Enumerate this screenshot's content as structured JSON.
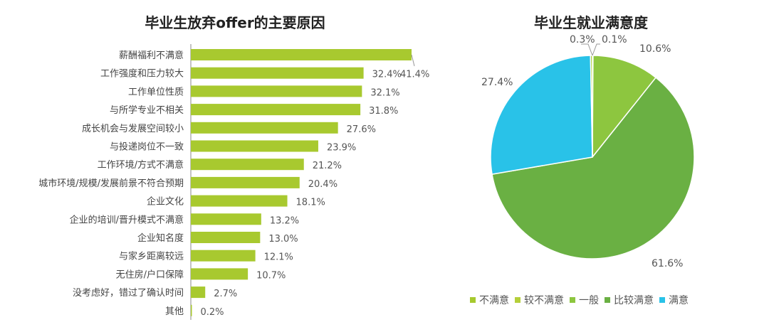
{
  "chart_data": [
    {
      "type": "bar",
      "orientation": "horizontal",
      "title": "毕业生放弃offer的主要原因",
      "categories": [
        "薪酬福利不满意",
        "工作强度和压力较大",
        "工作单位性质",
        "与所学专业不相关",
        "成长机会与发展空间较小",
        "与投递岗位不一致",
        "工作环境/方式不满意",
        "城市环境/规模/发展前景不符合预期",
        "企业文化",
        "企业的培训/晋升模式不满意",
        "企业知名度",
        "与家乡距离较远",
        "无住房/户口保障",
        "没考虑好，错过了确认时间",
        "其他"
      ],
      "values": [
        41.4,
        32.4,
        32.1,
        31.8,
        27.6,
        23.9,
        21.2,
        20.4,
        18.1,
        13.2,
        13.0,
        12.1,
        10.7,
        2.7,
        0.2
      ],
      "labels": [
        "41.4%",
        "32.4%",
        "32.1%",
        "31.8%",
        "27.6%",
        "23.9%",
        "21.2%",
        "20.4%",
        "18.1%",
        "13.2%",
        "13.0%",
        "12.1%",
        "10.7%",
        "2.7%",
        "0.2%"
      ],
      "color": "#a8c92f"
    },
    {
      "type": "pie",
      "title": "毕业生就业满意度",
      "slices": [
        {
          "name": "较不满意",
          "value": 0.1,
          "label": "0.1%",
          "color": "#b5cf3a"
        },
        {
          "name": "一般",
          "value": 10.6,
          "label": "10.6%",
          "color": "#8dc63f"
        },
        {
          "name": "比较满意",
          "value": 61.6,
          "label": "61.6%",
          "color": "#6ab043"
        },
        {
          "name": "满意",
          "value": 27.4,
          "label": "27.4%",
          "color": "#29c2e8"
        },
        {
          "name": "不满意",
          "value": 0.3,
          "label": "0.3%",
          "color": "#a6c92e"
        }
      ],
      "legend": [
        "不满意",
        "较不满意",
        "一般",
        "比较满意",
        "满意"
      ],
      "legend_colors": [
        "#a6c92e",
        "#b5cf3a",
        "#8dc63f",
        "#6ab043",
        "#29c2e8"
      ],
      "legend_position": "bottom"
    }
  ]
}
